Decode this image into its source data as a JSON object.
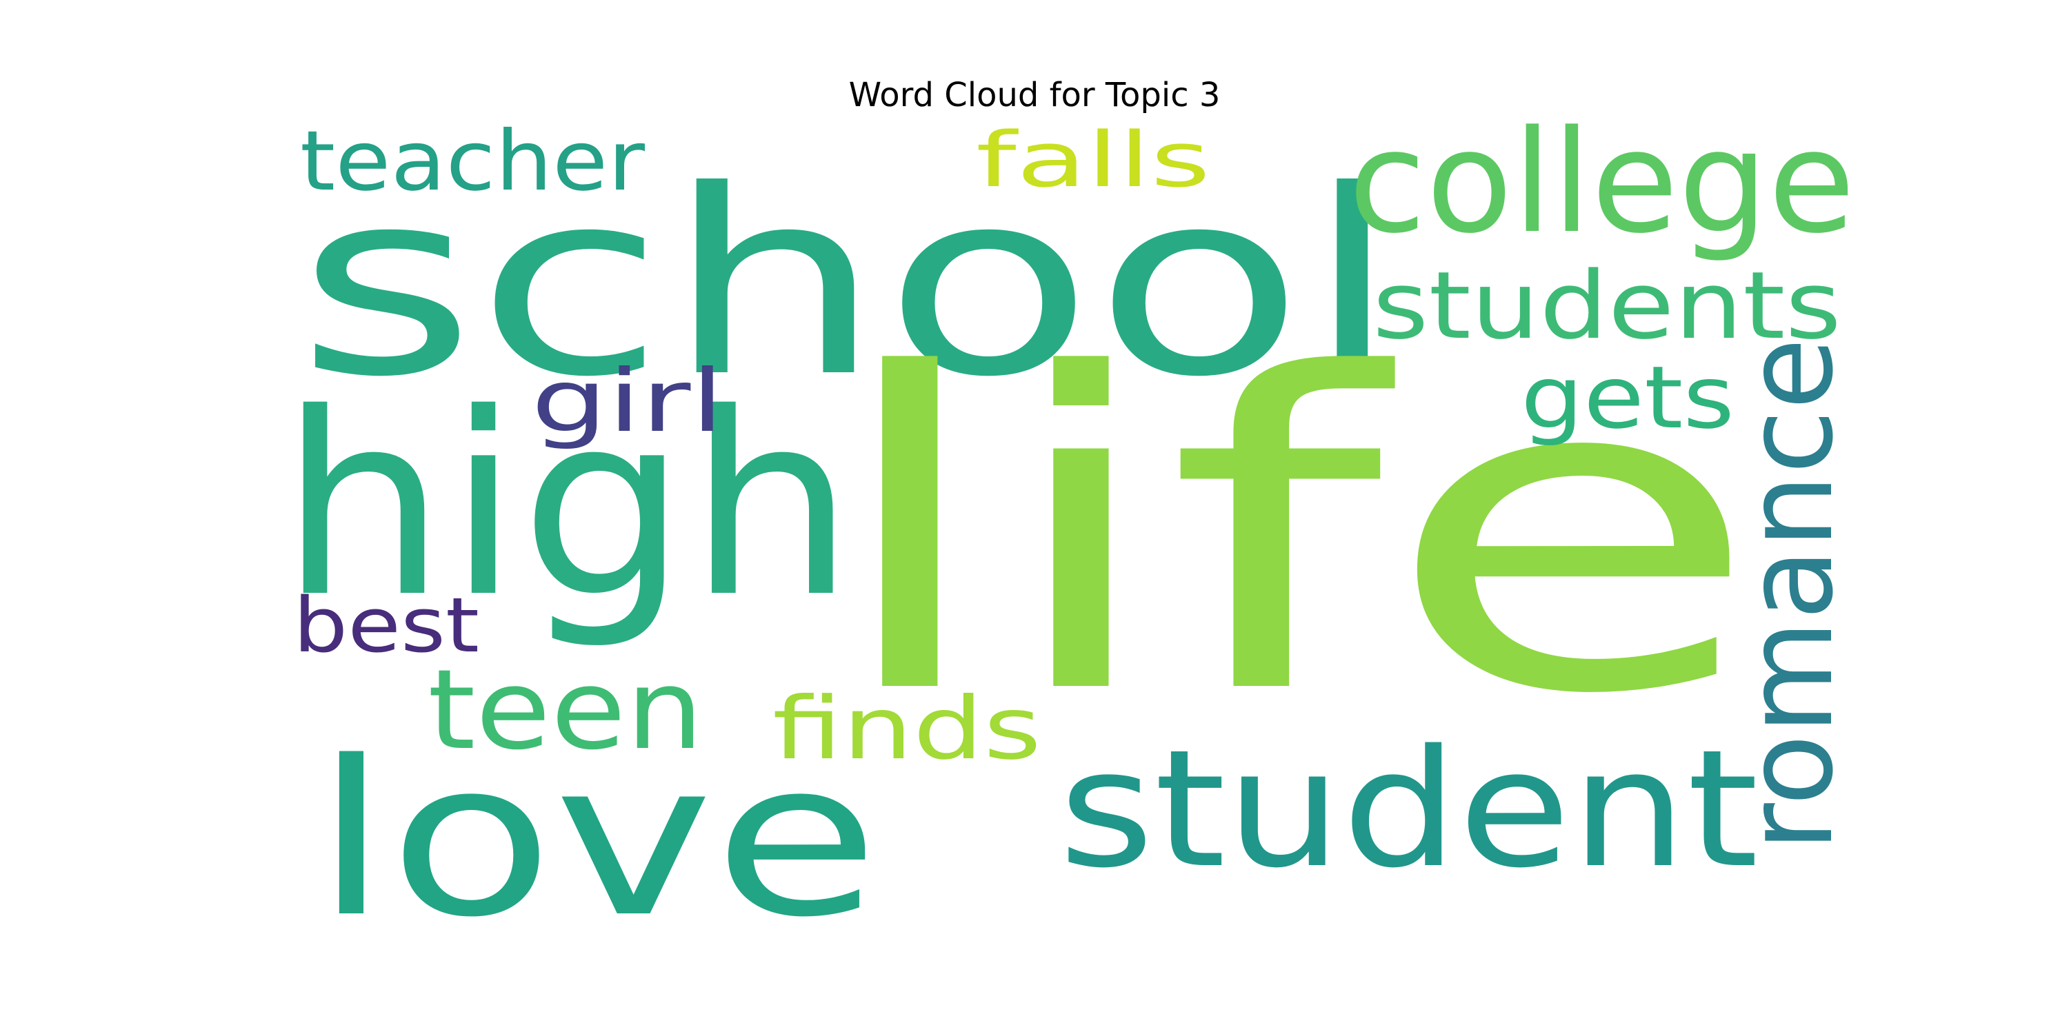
{
  "title": "Word Cloud for Topic 3",
  "words": [
    {
      "text": "school",
      "color": "#28ab84"
    },
    {
      "text": "life",
      "color": "#8fd744"
    },
    {
      "text": "high",
      "color": "#2aad83"
    },
    {
      "text": "love",
      "color": "#21a585"
    },
    {
      "text": "student",
      "color": "#21978b"
    },
    {
      "text": "college",
      "color": "#5cc863"
    },
    {
      "text": "students",
      "color": "#3dbb76"
    },
    {
      "text": "teacher",
      "color": "#24a187"
    },
    {
      "text": "falls",
      "color": "#c8e020"
    },
    {
      "text": "romance",
      "color": "#2c7f8e"
    },
    {
      "text": "gets",
      "color": "#2eb37c"
    },
    {
      "text": "girl",
      "color": "#424086"
    },
    {
      "text": "best",
      "color": "#472d7b"
    },
    {
      "text": "teen",
      "color": "#3ebc73"
    },
    {
      "text": "finds",
      "color": "#a2da37"
    }
  ]
}
